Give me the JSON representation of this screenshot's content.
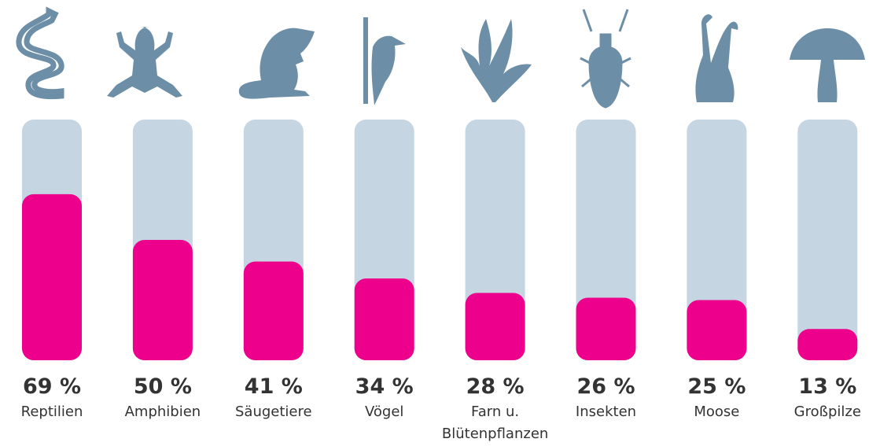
{
  "chart_data": {
    "type": "bar",
    "categories": [
      "Reptilien",
      "Amphibien",
      "Säugetiere",
      "Vögel",
      "Farn u. Blütenpflanzen",
      "Insekten",
      "Moose",
      "Großpilze"
    ],
    "values": [
      69,
      50,
      41,
      34,
      28,
      26,
      25,
      13
    ],
    "value_labels": [
      "69 %",
      "50 %",
      "41 %",
      "34 %",
      "28 %",
      "26 %",
      "25 %",
      "13 %"
    ],
    "color": "#ec008c",
    "track_color": "#c5d5e1",
    "ylim": [
      0,
      100
    ]
  }
}
